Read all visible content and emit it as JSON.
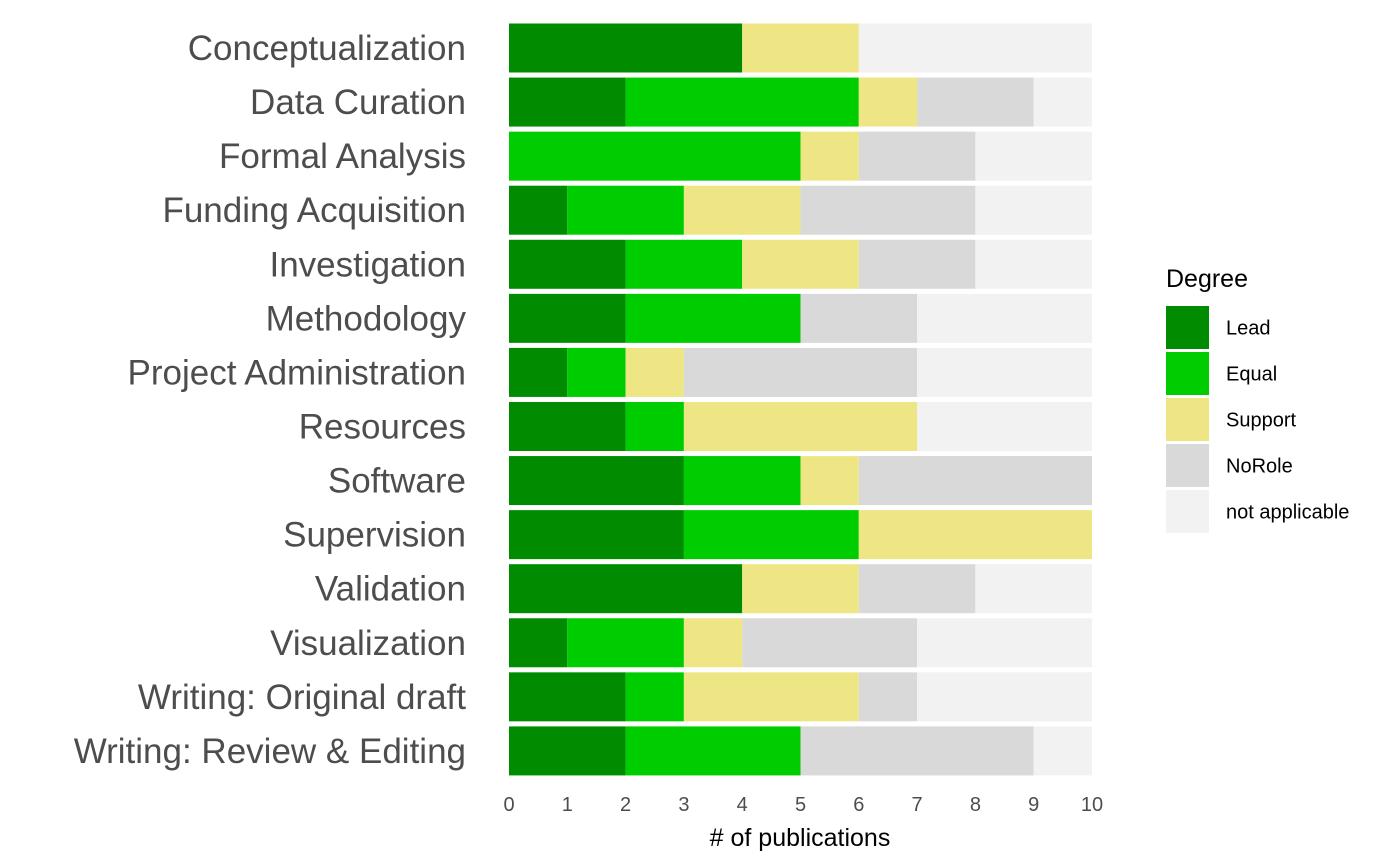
{
  "chart_data": {
    "type": "bar",
    "orientation": "horizontal",
    "stacked": true,
    "categories": [
      "Conceptualization",
      "Data Curation",
      "Formal Analysis",
      "Funding Acquisition",
      "Investigation",
      "Methodology",
      "Project Administration",
      "Resources",
      "Software",
      "Supervision",
      "Validation",
      "Visualization",
      "Writing: Original draft",
      "Writing: Review & Editing"
    ],
    "series": [
      {
        "name": "Lead",
        "color": "#008b00",
        "values": [
          4,
          2,
          0,
          1,
          2,
          2,
          1,
          2,
          3,
          3,
          4,
          1,
          2,
          2
        ]
      },
      {
        "name": "Equal",
        "color": "#00cd00",
        "values": [
          0,
          4,
          5,
          2,
          2,
          3,
          1,
          1,
          2,
          3,
          0,
          2,
          1,
          3
        ]
      },
      {
        "name": "Support",
        "color": "#eee685",
        "values": [
          2,
          1,
          1,
          2,
          2,
          0,
          1,
          4,
          1,
          4,
          2,
          1,
          3,
          0
        ]
      },
      {
        "name": "NoRole",
        "color": "#d9d9d9",
        "values": [
          0,
          2,
          2,
          3,
          2,
          2,
          4,
          0,
          4,
          0,
          2,
          3,
          1,
          4
        ]
      },
      {
        "name": "not applicable",
        "color": "#f2f2f2",
        "values": [
          4,
          1,
          2,
          2,
          2,
          3,
          3,
          3,
          0,
          0,
          2,
          3,
          3,
          1
        ]
      }
    ],
    "xlabel": "# of publications",
    "ylabel": "",
    "xlim": [
      0,
      10
    ],
    "xticks": [
      "0",
      "1",
      "2",
      "3",
      "4",
      "5",
      "6",
      "7",
      "8",
      "9",
      "10"
    ],
    "legend": {
      "title": "Degree",
      "position": "right"
    },
    "grid": false
  }
}
